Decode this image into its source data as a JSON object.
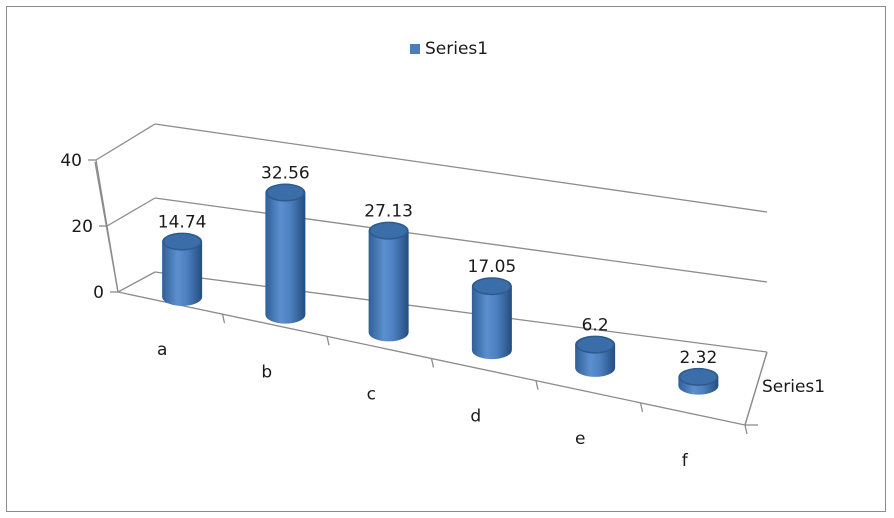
{
  "chart_data": {
    "type": "bar",
    "subtype": "3d-cylinder",
    "categories": [
      "a",
      "b",
      "c",
      "d",
      "e",
      "f"
    ],
    "series": [
      {
        "name": "Series1",
        "values": [
          14.74,
          32.56,
          27.13,
          17.05,
          6.2,
          2.32
        ],
        "labels": [
          "14.74",
          "32.56",
          "27.13",
          "17.05",
          "6.2",
          "2.32"
        ]
      }
    ],
    "ylim": [
      0,
      40
    ],
    "yticks": [
      0,
      20,
      40
    ],
    "ytick_labels": [
      "0",
      "20",
      "40"
    ],
    "depth_axis_label": "Series1",
    "legend": {
      "position": "top",
      "entries": [
        "Series1"
      ]
    },
    "grid": true,
    "colors": {
      "bar": "#4a7ebb",
      "bar_dark": "#2e5a8e",
      "bar_top": "#5f8fcb",
      "axis": "#8c8c8c"
    }
  }
}
